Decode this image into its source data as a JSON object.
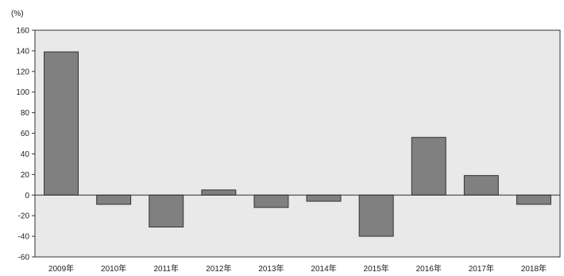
{
  "chart_data": {
    "type": "bar",
    "title": "",
    "xlabel": "",
    "ylabel": "",
    "unit_label": "(%)",
    "categories": [
      "2009年",
      "2010年",
      "2011年",
      "2012年",
      "2013年",
      "2014年",
      "2015年",
      "2016年",
      "2017年",
      "2018年"
    ],
    "series": [
      {
        "values": [
          139,
          -9,
          -31,
          5,
          -12,
          -6,
          -40,
          56,
          19,
          -9
        ]
      }
    ],
    "ylim": [
      -60,
      160
    ],
    "yticks": [
      -60,
      -40,
      -20,
      0,
      20,
      40,
      60,
      80,
      100,
      120,
      140,
      160
    ],
    "grid": false,
    "legend": "none",
    "colors": {
      "plot_background": "#e9e9e9",
      "bar_fill": "#808080",
      "bar_stroke": "#333333",
      "axis": "#333333"
    }
  }
}
